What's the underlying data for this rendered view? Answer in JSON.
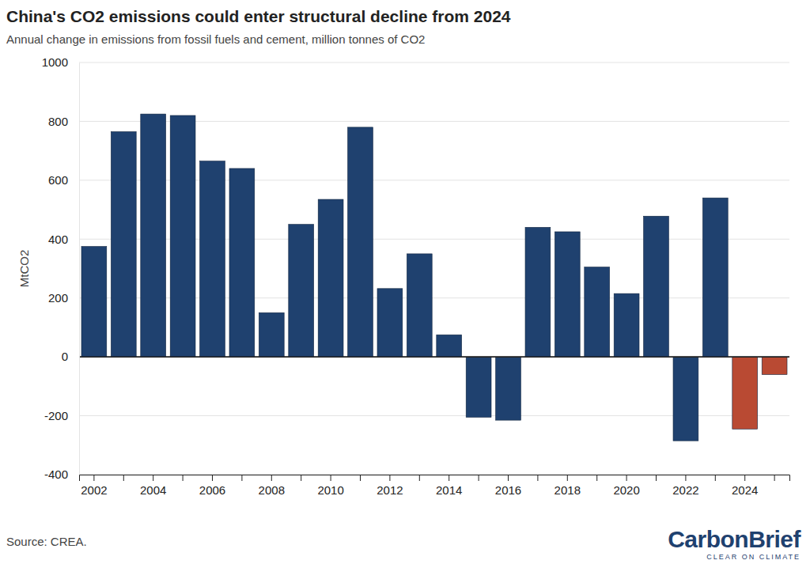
{
  "chart_data": {
    "type": "bar",
    "title": "China's CO2 emissions could enter structural decline from 2024",
    "subtitle": "Annual change in emissions from fossil fuels and cement, million tonnes of CO2",
    "y_label": "MtCO2",
    "source": "Source: CREA.",
    "brand": "CarbonBrief",
    "brand_tagline": "CLEAR ON CLIMATE",
    "categories": [
      "2002",
      null,
      "2004",
      null,
      "2006",
      null,
      "2008",
      null,
      "2010",
      null,
      "2012",
      null,
      "2014",
      null,
      "2016",
      null,
      "2018",
      null,
      "2020",
      null,
      "2022",
      null,
      "2024",
      null
    ],
    "values": [
      375,
      765,
      825,
      820,
      665,
      640,
      150,
      450,
      535,
      780,
      232,
      350,
      75,
      -205,
      -215,
      440,
      425,
      305,
      215,
      478,
      -285,
      540,
      -245,
      -60
    ],
    "colors": [
      "#1f416f",
      "#1f416f",
      "#1f416f",
      "#1f416f",
      "#1f416f",
      "#1f416f",
      "#1f416f",
      "#1f416f",
      "#1f416f",
      "#1f416f",
      "#1f416f",
      "#1f416f",
      "#1f416f",
      "#1f416f",
      "#1f416f",
      "#1f416f",
      "#1f416f",
      "#1f416f",
      "#1f416f",
      "#1f416f",
      "#1f416f",
      "#1f416f",
      "#b94a33",
      "#b94a33"
    ],
    "ylim": [
      -400,
      1000
    ],
    "yticks": [
      -400,
      -200,
      0,
      200,
      400,
      600,
      800,
      1000
    ],
    "grid": true
  }
}
